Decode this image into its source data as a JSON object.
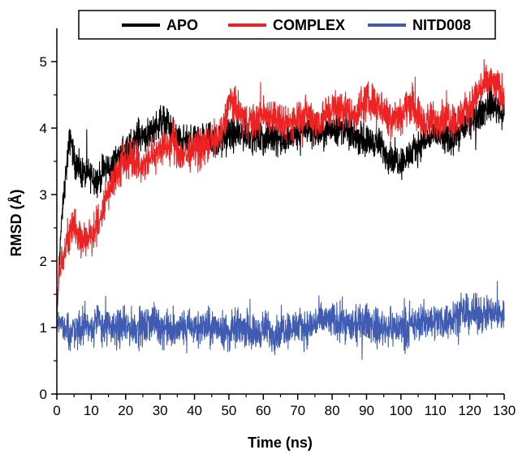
{
  "chart_data": {
    "type": "line",
    "title": "",
    "xlabel": "Time (ns)",
    "ylabel": "RMSD (Å)",
    "xlim": [
      0,
      130
    ],
    "ylim": [
      0,
      5.5
    ],
    "x_ticks": [
      0,
      10,
      20,
      30,
      40,
      50,
      60,
      70,
      80,
      90,
      100,
      110,
      120,
      130
    ],
    "y_ticks": [
      0,
      1,
      2,
      3,
      4,
      5
    ],
    "grid": false,
    "legend_position": "top",
    "series": [
      {
        "name": "APO",
        "color": "#000000",
        "x": [
          0,
          1,
          2,
          3,
          4,
          5,
          6,
          8,
          10,
          12,
          14,
          16,
          18,
          20,
          22,
          24,
          26,
          28,
          30,
          32,
          34,
          36,
          38,
          40,
          42,
          45,
          48,
          50,
          52,
          55,
          58,
          60,
          63,
          66,
          70,
          73,
          76,
          80,
          83,
          86,
          90,
          93,
          96,
          100,
          103,
          106,
          110,
          113,
          116,
          120,
          123,
          126,
          130
        ],
        "y": [
          1.1,
          2.3,
          3.0,
          3.5,
          3.9,
          3.5,
          3.4,
          3.3,
          3.3,
          3.2,
          3.4,
          3.4,
          3.6,
          3.6,
          3.8,
          3.9,
          3.9,
          4.0,
          4.1,
          4.1,
          3.9,
          3.8,
          3.8,
          3.8,
          3.9,
          3.8,
          3.8,
          3.9,
          3.9,
          3.9,
          3.9,
          3.8,
          3.9,
          3.8,
          3.9,
          4.0,
          3.9,
          4.0,
          4.0,
          3.9,
          3.8,
          3.8,
          3.6,
          3.5,
          3.6,
          3.8,
          3.9,
          3.8,
          3.9,
          4.1,
          4.2,
          4.4,
          4.2
        ]
      },
      {
        "name": "COMPLEX",
        "color": "#ee2222",
        "x": [
          0,
          1,
          2,
          3,
          4,
          5,
          6,
          8,
          10,
          12,
          14,
          16,
          18,
          20,
          22,
          24,
          26,
          28,
          30,
          32,
          34,
          36,
          38,
          40,
          42,
          45,
          48,
          50,
          52,
          55,
          58,
          60,
          63,
          66,
          70,
          73,
          76,
          80,
          83,
          86,
          90,
          93,
          96,
          100,
          103,
          106,
          110,
          113,
          116,
          120,
          123,
          126,
          130
        ],
        "y": [
          1.4,
          1.9,
          2.1,
          2.3,
          2.5,
          2.5,
          2.4,
          2.3,
          2.4,
          2.6,
          2.9,
          3.2,
          3.4,
          3.5,
          3.6,
          3.4,
          3.5,
          3.6,
          3.7,
          3.7,
          3.8,
          3.6,
          3.6,
          3.7,
          3.7,
          3.8,
          3.9,
          4.4,
          4.3,
          4.1,
          4.1,
          4.2,
          4.2,
          4.0,
          4.2,
          4.2,
          4.1,
          4.3,
          4.3,
          4.2,
          4.4,
          4.4,
          4.2,
          4.2,
          4.4,
          4.1,
          4.1,
          4.2,
          4.1,
          4.3,
          4.6,
          4.7,
          4.5
        ]
      },
      {
        "name": "NITD008",
        "color": "#3f5cb2",
        "x": [
          0,
          1,
          2,
          3,
          4,
          5,
          6,
          8,
          10,
          12,
          14,
          16,
          18,
          20,
          22,
          24,
          26,
          28,
          30,
          32,
          34,
          36,
          38,
          40,
          42,
          45,
          48,
          50,
          52,
          55,
          58,
          60,
          63,
          66,
          70,
          73,
          76,
          80,
          83,
          86,
          90,
          93,
          96,
          100,
          103,
          106,
          110,
          113,
          116,
          120,
          123,
          126,
          130
        ],
        "y": [
          1.0,
          1.1,
          1.0,
          1.0,
          0.9,
          1.0,
          1.0,
          1.0,
          1.0,
          1.1,
          1.0,
          1.0,
          1.0,
          1.0,
          1.0,
          1.0,
          1.0,
          1.1,
          1.0,
          1.0,
          0.9,
          1.0,
          1.0,
          1.0,
          1.0,
          1.0,
          1.0,
          0.9,
          1.0,
          1.0,
          0.9,
          1.0,
          0.9,
          1.0,
          1.0,
          1.0,
          1.1,
          1.1,
          1.1,
          1.0,
          1.1,
          1.0,
          1.0,
          1.0,
          1.0,
          1.1,
          1.1,
          1.1,
          1.2,
          1.2,
          1.2,
          1.2,
          1.2
        ]
      }
    ]
  }
}
